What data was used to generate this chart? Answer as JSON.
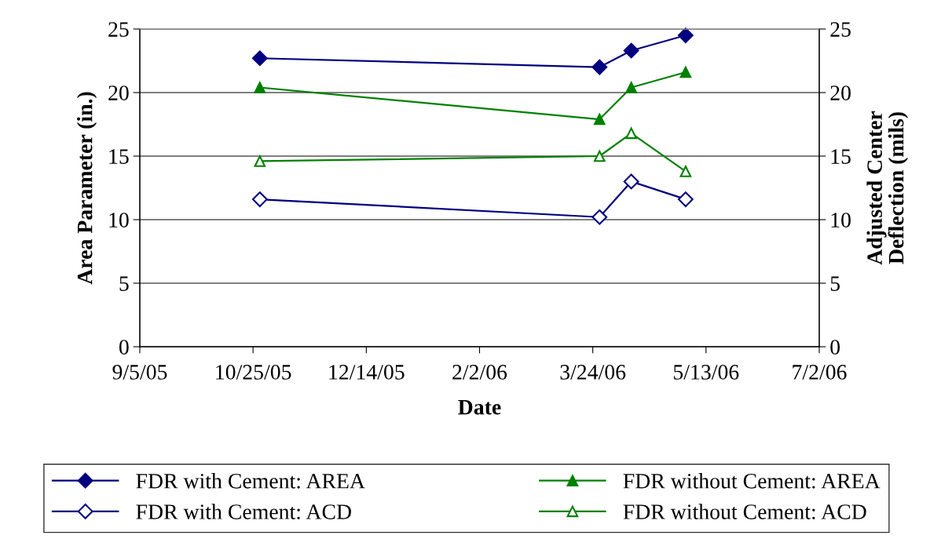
{
  "chart_data": {
    "type": "line",
    "xlabel": "Date",
    "ylabel": "Area Parameter (in.)",
    "y2label": "Adjusted Center Deflection (mils)",
    "x": [
      "2005-10-28",
      "2006-03-27",
      "2006-04-10",
      "2006-05-04"
    ],
    "xlim": [
      "2005-09-05",
      "2006-07-02"
    ],
    "xticks": [
      {
        "value": "2005-09-05",
        "label": "9/5/05"
      },
      {
        "value": "2005-10-25",
        "label": "10/25/05"
      },
      {
        "value": "2005-12-14",
        "label": "12/14/05"
      },
      {
        "value": "2006-02-02",
        "label": "2/2/06"
      },
      {
        "value": "2006-03-24",
        "label": "3/24/06"
      },
      {
        "value": "2006-05-13",
        "label": "5/13/06"
      },
      {
        "value": "2006-07-02",
        "label": "7/2/06"
      }
    ],
    "ylim": [
      0,
      25
    ],
    "yticks": [
      0,
      5,
      10,
      15,
      20,
      25
    ],
    "y2lim": [
      0,
      25
    ],
    "y2ticks": [
      0,
      5,
      10,
      15,
      20,
      25
    ],
    "grid": "y",
    "legend": "bottom",
    "series": [
      {
        "name": "FDR with Cement: AREA",
        "color": "#000080",
        "marker": "diamond",
        "values": [
          22.7,
          22.0,
          23.3,
          24.5
        ]
      },
      {
        "name": "FDR without Cement: AREA",
        "color": "#008000",
        "marker": "triangle",
        "values": [
          20.4,
          17.9,
          20.4,
          21.6
        ]
      },
      {
        "name": "FDR with Cement: ACD",
        "color": "#000080",
        "marker": "diamond",
        "axis": "y2",
        "values": [
          11.6,
          10.2,
          13.0,
          11.6
        ]
      },
      {
        "name": "FDR without Cement: ACD",
        "color": "#008000",
        "marker": "triangle",
        "axis": "y2",
        "values": [
          14.6,
          15.0,
          16.8,
          13.8
        ]
      }
    ]
  }
}
